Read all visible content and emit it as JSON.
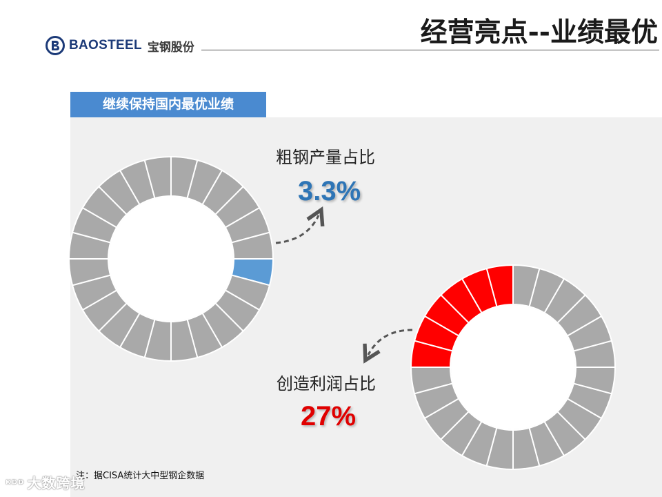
{
  "header": {
    "brand_en": "BAOSTEEL",
    "brand_cn": "宝钢股份",
    "title": "经营亮点--业绩最优"
  },
  "section": {
    "label": "继续保持国内最优业绩"
  },
  "chart_data": {
    "type": "pie",
    "style": "segmented-donut",
    "title": "继续保持国内最优业绩",
    "charts": [
      {
        "name": "粗钢产量占比",
        "label": "粗钢产量占比",
        "value_text": "3.3%",
        "value": 3.3,
        "segments_total": 24,
        "segments_highlighted": 1,
        "highlight_color": "#5b9bd5",
        "base_color": "#a9a9a9"
      },
      {
        "name": "创造利润占比",
        "label": "创造利润占比",
        "value_text": "27%",
        "value": 27,
        "segments_total": 24,
        "segments_highlighted": 6,
        "highlight_color": "#ff0000",
        "base_color": "#a9a9a9"
      }
    ]
  },
  "footnote": "注：据CISA统计大中型钢企数据",
  "watermark": {
    "icon": "kdd-icon",
    "text": "大数跨境"
  }
}
